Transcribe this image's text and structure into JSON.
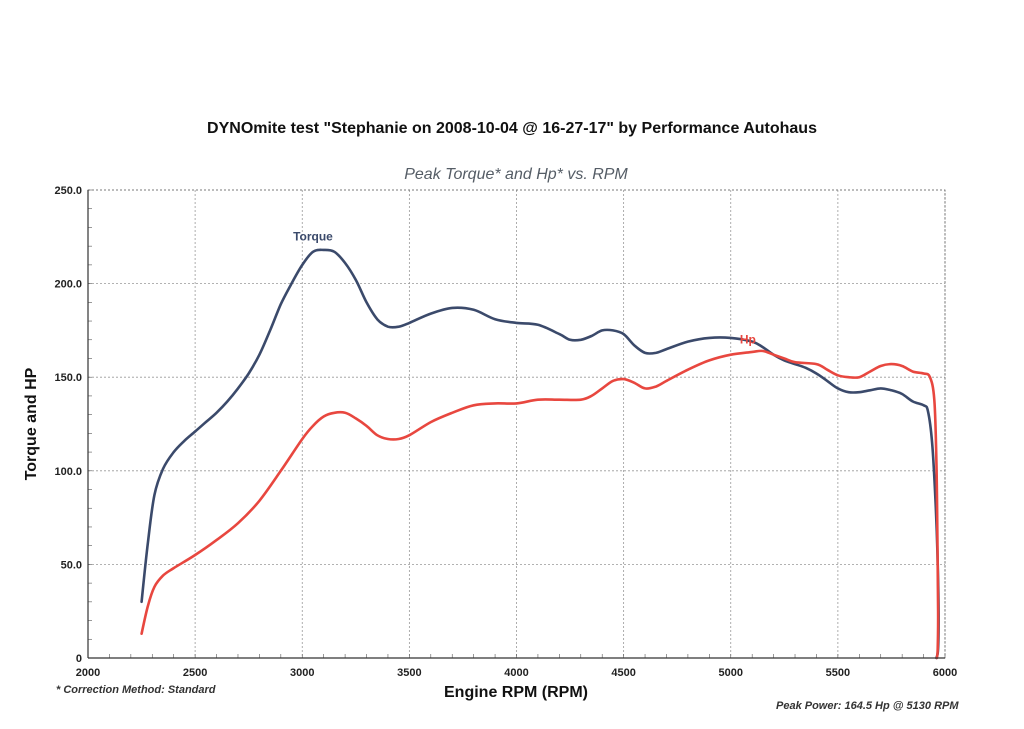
{
  "chart_data": {
    "type": "line",
    "title": "DYNOmite test \"Stephanie on 2008-10-04 @ 16-27-17\" by Performance Autohaus",
    "subtitle": "Peak Torque* and Hp* vs. RPM",
    "xlabel": "Engine RPM (RPM)",
    "ylabel": "Torque and HP",
    "xlim": [
      2000,
      6000
    ],
    "ylim": [
      0,
      250
    ],
    "xticks": [
      "2000",
      "2500",
      "3000",
      "3500",
      "4000",
      "4500",
      "5000",
      "5500",
      "6000"
    ],
    "yticks": [
      "0",
      "50.0",
      "100.0",
      "150.0",
      "200.0",
      "250.0"
    ],
    "grid": true,
    "series": [
      {
        "name": "Torque",
        "color": "#3b4a6b",
        "points": [
          [
            2250,
            30
          ],
          [
            2280,
            62
          ],
          [
            2310,
            87
          ],
          [
            2350,
            101
          ],
          [
            2400,
            110
          ],
          [
            2450,
            116
          ],
          [
            2500,
            121
          ],
          [
            2550,
            126
          ],
          [
            2600,
            131
          ],
          [
            2650,
            137
          ],
          [
            2700,
            144
          ],
          [
            2750,
            152
          ],
          [
            2800,
            162
          ],
          [
            2850,
            175
          ],
          [
            2900,
            189
          ],
          [
            2950,
            200
          ],
          [
            3000,
            210
          ],
          [
            3050,
            217
          ],
          [
            3100,
            218
          ],
          [
            3150,
            217
          ],
          [
            3200,
            211
          ],
          [
            3250,
            202
          ],
          [
            3300,
            190
          ],
          [
            3350,
            181
          ],
          [
            3400,
            177
          ],
          [
            3450,
            177
          ],
          [
            3500,
            179
          ],
          [
            3600,
            184
          ],
          [
            3700,
            187
          ],
          [
            3800,
            186
          ],
          [
            3900,
            181
          ],
          [
            4000,
            179
          ],
          [
            4100,
            178
          ],
          [
            4200,
            173
          ],
          [
            4250,
            170
          ],
          [
            4300,
            170
          ],
          [
            4350,
            172
          ],
          [
            4400,
            175
          ],
          [
            4450,
            175
          ],
          [
            4500,
            173
          ],
          [
            4550,
            167
          ],
          [
            4600,
            163
          ],
          [
            4650,
            163
          ],
          [
            4700,
            165
          ],
          [
            4800,
            169
          ],
          [
            4900,
            171
          ],
          [
            5000,
            171
          ],
          [
            5100,
            169
          ],
          [
            5150,
            166
          ],
          [
            5200,
            162
          ],
          [
            5250,
            159
          ],
          [
            5300,
            157
          ],
          [
            5350,
            155
          ],
          [
            5400,
            152
          ],
          [
            5450,
            148
          ],
          [
            5500,
            144
          ],
          [
            5550,
            142
          ],
          [
            5600,
            142
          ],
          [
            5650,
            143
          ],
          [
            5700,
            144
          ],
          [
            5750,
            143
          ],
          [
            5800,
            141
          ],
          [
            5850,
            137
          ],
          [
            5900,
            135
          ],
          [
            5920,
            132
          ],
          [
            5940,
            115
          ],
          [
            5955,
            85
          ],
          [
            5965,
            55
          ],
          [
            5970,
            25
          ],
          [
            5968,
            5
          ],
          [
            5960,
            0
          ]
        ]
      },
      {
        "name": "Hp",
        "color": "#e8473f",
        "points": [
          [
            2250,
            13
          ],
          [
            2280,
            28
          ],
          [
            2310,
            38
          ],
          [
            2350,
            44
          ],
          [
            2400,
            48
          ],
          [
            2500,
            55
          ],
          [
            2600,
            63
          ],
          [
            2700,
            72
          ],
          [
            2800,
            84
          ],
          [
            2900,
            100
          ],
          [
            3000,
            117
          ],
          [
            3050,
            124
          ],
          [
            3100,
            129
          ],
          [
            3150,
            131
          ],
          [
            3200,
            131
          ],
          [
            3250,
            128
          ],
          [
            3300,
            124
          ],
          [
            3350,
            119
          ],
          [
            3400,
            117
          ],
          [
            3450,
            117
          ],
          [
            3500,
            119
          ],
          [
            3600,
            126
          ],
          [
            3700,
            131
          ],
          [
            3800,
            135
          ],
          [
            3900,
            136
          ],
          [
            4000,
            136
          ],
          [
            4100,
            138
          ],
          [
            4200,
            138
          ],
          [
            4300,
            138
          ],
          [
            4350,
            140
          ],
          [
            4400,
            144
          ],
          [
            4450,
            148
          ],
          [
            4500,
            149
          ],
          [
            4550,
            147
          ],
          [
            4600,
            144
          ],
          [
            4650,
            145
          ],
          [
            4700,
            148
          ],
          [
            4800,
            154
          ],
          [
            4900,
            159
          ],
          [
            5000,
            162
          ],
          [
            5100,
            163.5
          ],
          [
            5150,
            164
          ],
          [
            5200,
            162
          ],
          [
            5250,
            160
          ],
          [
            5300,
            158
          ],
          [
            5400,
            157
          ],
          [
            5450,
            154
          ],
          [
            5500,
            151
          ],
          [
            5550,
            150
          ],
          [
            5600,
            150
          ],
          [
            5650,
            153
          ],
          [
            5700,
            156
          ],
          [
            5750,
            157
          ],
          [
            5800,
            156
          ],
          [
            5850,
            153
          ],
          [
            5900,
            152
          ],
          [
            5930,
            150
          ],
          [
            5950,
            138
          ],
          [
            5960,
            105
          ],
          [
            5965,
            60
          ],
          [
            5968,
            25
          ],
          [
            5966,
            5
          ],
          [
            5962,
            0
          ]
        ]
      }
    ],
    "annotations": [
      {
        "text": "Torque",
        "x": 3050,
        "y": 223,
        "color": "#3b4a6b"
      },
      {
        "text": "Hp",
        "x": 5080,
        "y": 168,
        "color": "#e8473f"
      }
    ]
  },
  "notes": {
    "correction": "* Correction Method: Standard",
    "peak_power": "Peak Power: 164.5 Hp @ 5130 RPM"
  }
}
